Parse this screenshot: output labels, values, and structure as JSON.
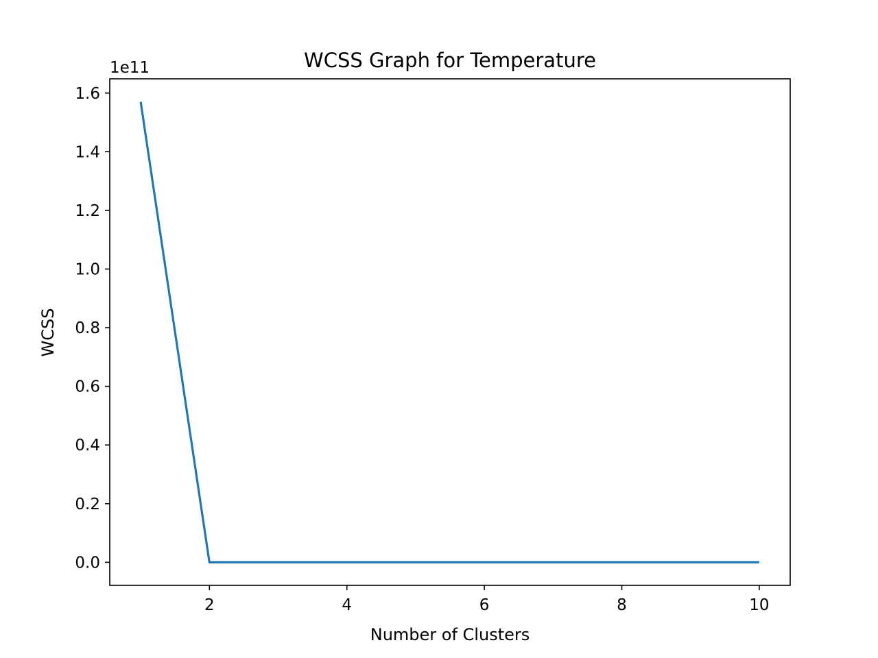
{
  "chart_data": {
    "type": "line",
    "title": "WCSS Graph for Temperature",
    "xlabel": "Number of Clusters",
    "ylabel": "WCSS",
    "y_offset_label": "1e11",
    "y_scale_factor": 100000000000,
    "x": [
      1,
      2,
      3,
      4,
      5,
      6,
      7,
      8,
      9,
      10
    ],
    "series": [
      {
        "values": [
          157000000000,
          0,
          0,
          0,
          0,
          0,
          0,
          0,
          0,
          0
        ],
        "color": "#1f77b4"
      }
    ],
    "xlim": [
      0.55,
      10.45
    ],
    "ylim": [
      -7850000000,
      164850000000
    ],
    "x_ticks": [
      2,
      4,
      6,
      8,
      10
    ],
    "x_tick_labels": [
      "2",
      "4",
      "6",
      "8",
      "10"
    ],
    "y_ticks": [
      0,
      20000000000,
      40000000000,
      60000000000,
      80000000000,
      100000000000,
      120000000000,
      140000000000,
      160000000000
    ],
    "y_tick_labels": [
      "0.0",
      "0.2",
      "0.4",
      "0.6",
      "0.8",
      "1.0",
      "1.2",
      "1.4",
      "1.6"
    ],
    "grid": false,
    "legend": "none"
  }
}
